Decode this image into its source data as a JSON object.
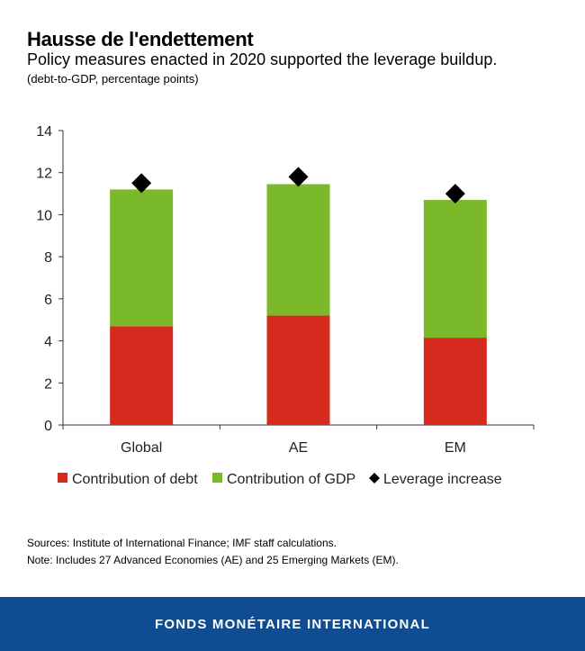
{
  "header": {
    "title": "Hausse de l'endettement",
    "subtitle": "Policy measures enacted in 2020 supported the leverage buildup.",
    "units": "(debt-to-GDP, percentage points)"
  },
  "chart_data": {
    "type": "bar",
    "stacked": true,
    "categories": [
      "Global",
      "AE",
      "EM"
    ],
    "series": [
      {
        "name": "Contribution of debt",
        "color": "#d62a1e",
        "values": [
          4.7,
          5.2,
          4.15
        ]
      },
      {
        "name": "Contribution of GDP",
        "color": "#7ab929",
        "values": [
          6.5,
          6.25,
          6.55
        ]
      }
    ],
    "markers": {
      "name": "Leverage increase",
      "color": "#000000",
      "values": [
        11.5,
        11.8,
        11.0
      ]
    },
    "ylim": [
      0,
      14
    ],
    "yticks": [
      0,
      2,
      4,
      6,
      8,
      10,
      12,
      14
    ],
    "legend_position": "bottom",
    "grid": false
  },
  "sources": "Sources: Institute of International Finance; IMF staff calculations.",
  "note": "Note: Includes 27 Advanced Economies (AE) and 25 Emerging Markets (EM).",
  "footer": {
    "label": "FONDS MONÉTAIRE INTERNATIONAL",
    "bg_color": "#0f4c92"
  }
}
